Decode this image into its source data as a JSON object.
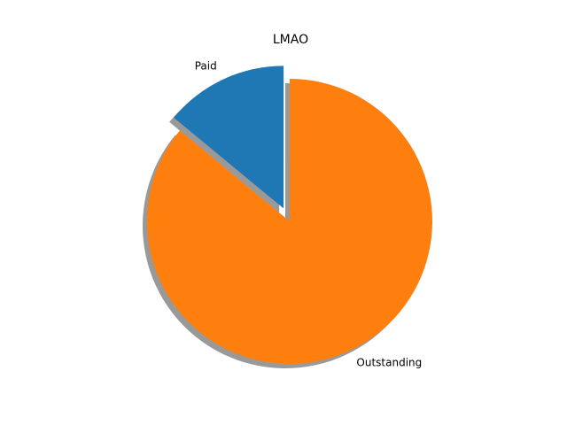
{
  "chart_data": {
    "type": "pie",
    "title": "LMAO",
    "categories": [
      "Paid",
      "Outstanding"
    ],
    "values": [
      14,
      86
    ],
    "colors": [
      "#1f77b4",
      "#ff7f0e"
    ],
    "explode": [
      0.1,
      0
    ],
    "shadow": true,
    "start_angle_deg": 90,
    "direction": "counterclockwise",
    "legend": "none",
    "percent_labels": false
  }
}
